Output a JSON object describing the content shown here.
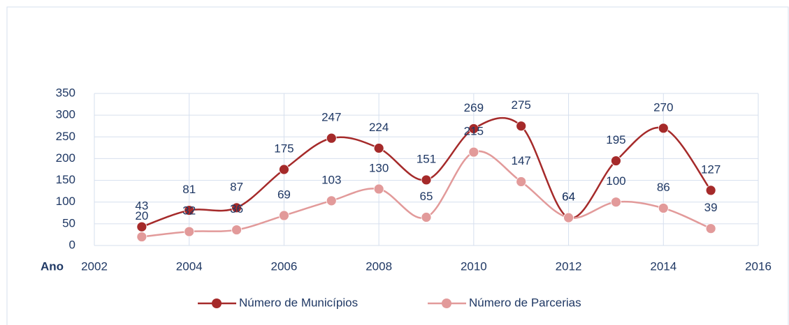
{
  "chart_data": {
    "type": "line",
    "x_label": "Ano",
    "x": [
      2003,
      2004,
      2005,
      2006,
      2007,
      2008,
      2009,
      2010,
      2011,
      2012,
      2013,
      2014,
      2015
    ],
    "series": [
      {
        "name": "Número de Municípios",
        "color": "#a52a2a",
        "values": [
          43,
          81,
          87,
          175,
          247,
          224,
          151,
          269,
          275,
          64,
          195,
          270,
          127
        ]
      },
      {
        "name": "Número de Parcerias",
        "color": "#e29a9a",
        "values": [
          20,
          32,
          36,
          69,
          103,
          130,
          65,
          215,
          147,
          64,
          100,
          86,
          39
        ]
      }
    ],
    "xlim": [
      2002,
      2016
    ],
    "xticks": [
      2002,
      2004,
      2006,
      2008,
      2010,
      2012,
      2014,
      2016
    ],
    "ylim": [
      0,
      350
    ],
    "yticks": [
      0,
      50,
      100,
      150,
      200,
      250,
      300,
      350
    ],
    "grid": true,
    "smooth": true,
    "legend": "bottom"
  }
}
